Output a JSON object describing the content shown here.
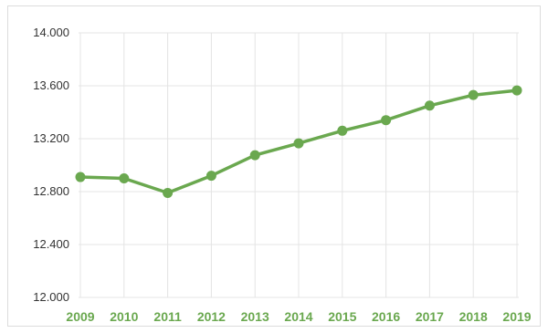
{
  "chart_data": {
    "type": "line",
    "title": "",
    "xlabel": "",
    "ylabel": "",
    "categories": [
      "2009",
      "2010",
      "2011",
      "2012",
      "2013",
      "2014",
      "2015",
      "2016",
      "2017",
      "2018",
      "2019"
    ],
    "series": [
      {
        "values": [
          12910,
          12900,
          12790,
          12920,
          13075,
          13165,
          13260,
          13340,
          13450,
          13530,
          13565
        ],
        "color": "#6aa84f"
      }
    ],
    "ylim": [
      12000,
      14000
    ],
    "yticks": [
      12000,
      12400,
      12800,
      13200,
      13600,
      14000
    ],
    "ytick_labels": [
      "12.000",
      "12.400",
      "12.800",
      "13.200",
      "13.600",
      "14.000"
    ],
    "grid": true,
    "legend": "none",
    "colors": {
      "line": "#6aa84f",
      "tick_x_text": "#6aa84f",
      "grid": "#e4e4e4"
    }
  }
}
